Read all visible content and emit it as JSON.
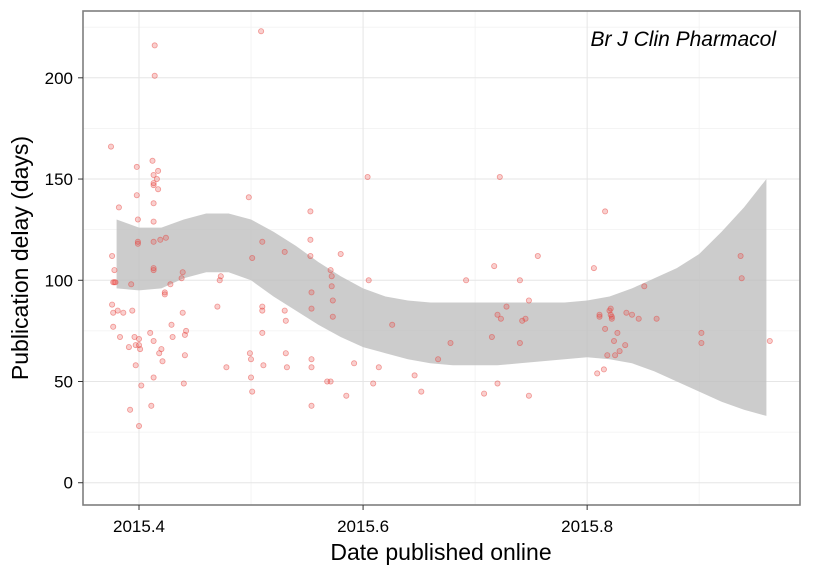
{
  "chart_data": {
    "type": "scatter",
    "annotation": "Br J Clin Pharmacol",
    "xlabel": "Date published online",
    "ylabel": "Publication delay (days)",
    "xlim": [
      2015.35,
      2015.99
    ],
    "ylim": [
      -11,
      233
    ],
    "x_ticks": [
      "2015.4",
      "2015.6",
      "2015.8"
    ],
    "x_tick_values": [
      2015.4,
      2015.6,
      2015.8
    ],
    "y_ticks": [
      "0",
      "50",
      "100",
      "150",
      "200"
    ],
    "y_tick_values": [
      0,
      50,
      100,
      150,
      200
    ],
    "grid": true,
    "point_color": "#e8413c",
    "band_color": "#bebebe",
    "points": [
      [
        2015.375,
        166
      ],
      [
        2015.376,
        112
      ],
      [
        2015.376,
        88
      ],
      [
        2015.377,
        84
      ],
      [
        2015.377,
        77
      ],
      [
        2015.377,
        99
      ],
      [
        2015.378,
        99
      ],
      [
        2015.378,
        105
      ],
      [
        2015.379,
        99
      ],
      [
        2015.381,
        85
      ],
      [
        2015.382,
        136
      ],
      [
        2015.383,
        72
      ],
      [
        2015.386,
        84
      ],
      [
        2015.391,
        67
      ],
      [
        2015.392,
        36
      ],
      [
        2015.393,
        98
      ],
      [
        2015.394,
        85
      ],
      [
        2015.396,
        72
      ],
      [
        2015.397,
        68
      ],
      [
        2015.397,
        58
      ],
      [
        2015.398,
        156
      ],
      [
        2015.398,
        142
      ],
      [
        2015.399,
        130
      ],
      [
        2015.399,
        119
      ],
      [
        2015.399,
        118
      ],
      [
        2015.4,
        71
      ],
      [
        2015.4,
        68
      ],
      [
        2015.4,
        28
      ],
      [
        2015.401,
        66
      ],
      [
        2015.402,
        48
      ],
      [
        2015.41,
        74
      ],
      [
        2015.411,
        38
      ],
      [
        2015.412,
        159
      ],
      [
        2015.413,
        152
      ],
      [
        2015.413,
        148
      ],
      [
        2015.413,
        147
      ],
      [
        2015.413,
        138
      ],
      [
        2015.413,
        129
      ],
      [
        2015.413,
        119
      ],
      [
        2015.413,
        106
      ],
      [
        2015.413,
        105
      ],
      [
        2015.413,
        70
      ],
      [
        2015.413,
        52
      ],
      [
        2015.414,
        216
      ],
      [
        2015.414,
        201
      ],
      [
        2015.416,
        150
      ],
      [
        2015.417,
        154
      ],
      [
        2015.417,
        145
      ],
      [
        2015.418,
        64
      ],
      [
        2015.419,
        120
      ],
      [
        2015.42,
        66
      ],
      [
        2015.421,
        60
      ],
      [
        2015.423,
        94
      ],
      [
        2015.423,
        93
      ],
      [
        2015.424,
        121
      ],
      [
        2015.428,
        98
      ],
      [
        2015.429,
        78
      ],
      [
        2015.43,
        72
      ],
      [
        2015.438,
        101
      ],
      [
        2015.439,
        104
      ],
      [
        2015.439,
        84
      ],
      [
        2015.44,
        49
      ],
      [
        2015.441,
        73
      ],
      [
        2015.441,
        63
      ],
      [
        2015.442,
        75
      ],
      [
        2015.47,
        87
      ],
      [
        2015.472,
        100
      ],
      [
        2015.473,
        102
      ],
      [
        2015.478,
        57
      ],
      [
        2015.498,
        141
      ],
      [
        2015.499,
        64
      ],
      [
        2015.5,
        61
      ],
      [
        2015.5,
        52
      ],
      [
        2015.501,
        45
      ],
      [
        2015.501,
        111
      ],
      [
        2015.509,
        223
      ],
      [
        2015.51,
        119
      ],
      [
        2015.51,
        87
      ],
      [
        2015.51,
        85
      ],
      [
        2015.51,
        74
      ],
      [
        2015.511,
        58
      ],
      [
        2015.53,
        114
      ],
      [
        2015.53,
        85
      ],
      [
        2015.531,
        80
      ],
      [
        2015.531,
        64
      ],
      [
        2015.532,
        57
      ],
      [
        2015.553,
        134
      ],
      [
        2015.553,
        120
      ],
      [
        2015.553,
        112
      ],
      [
        2015.554,
        94
      ],
      [
        2015.554,
        86
      ],
      [
        2015.554,
        61
      ],
      [
        2015.554,
        57
      ],
      [
        2015.554,
        38
      ],
      [
        2015.568,
        50
      ],
      [
        2015.571,
        50
      ],
      [
        2015.571,
        105
      ],
      [
        2015.572,
        102
      ],
      [
        2015.572,
        97
      ],
      [
        2015.573,
        90
      ],
      [
        2015.573,
        82
      ],
      [
        2015.58,
        113
      ],
      [
        2015.585,
        43
      ],
      [
        2015.592,
        59
      ],
      [
        2015.604,
        151
      ],
      [
        2015.605,
        100
      ],
      [
        2015.609,
        49
      ],
      [
        2015.614,
        57
      ],
      [
        2015.626,
        78
      ],
      [
        2015.646,
        53
      ],
      [
        2015.652,
        45
      ],
      [
        2015.667,
        61
      ],
      [
        2015.678,
        69
      ],
      [
        2015.692,
        100
      ],
      [
        2015.708,
        44
      ],
      [
        2015.715,
        72
      ],
      [
        2015.717,
        107
      ],
      [
        2015.72,
        49
      ],
      [
        2015.72,
        83
      ],
      [
        2015.722,
        151
      ],
      [
        2015.723,
        81
      ],
      [
        2015.728,
        87
      ],
      [
        2015.74,
        69
      ],
      [
        2015.74,
        100
      ],
      [
        2015.742,
        80
      ],
      [
        2015.745,
        81
      ],
      [
        2015.748,
        43
      ],
      [
        2015.748,
        90
      ],
      [
        2015.756,
        112
      ],
      [
        2015.806,
        106
      ],
      [
        2015.809,
        54
      ],
      [
        2015.811,
        83
      ],
      [
        2015.811,
        82
      ],
      [
        2015.815,
        56
      ],
      [
        2015.816,
        134
      ],
      [
        2015.816,
        76
      ],
      [
        2015.818,
        63
      ],
      [
        2015.82,
        85
      ],
      [
        2015.821,
        86
      ],
      [
        2015.821,
        83
      ],
      [
        2015.822,
        82
      ],
      [
        2015.822,
        81
      ],
      [
        2015.824,
        70
      ],
      [
        2015.825,
        63
      ],
      [
        2015.827,
        74
      ],
      [
        2015.829,
        65
      ],
      [
        2015.834,
        68
      ],
      [
        2015.835,
        84
      ],
      [
        2015.84,
        83
      ],
      [
        2015.846,
        81
      ],
      [
        2015.851,
        97
      ],
      [
        2015.862,
        81
      ],
      [
        2015.902,
        74
      ],
      [
        2015.902,
        69
      ],
      [
        2015.937,
        112
      ],
      [
        2015.938,
        101
      ],
      [
        2015.963,
        70
      ]
    ],
    "confidence_band": {
      "x": [
        2015.38,
        2015.4,
        2015.42,
        2015.44,
        2015.46,
        2015.48,
        2015.5,
        2015.52,
        2015.54,
        2015.56,
        2015.58,
        2015.6,
        2015.62,
        2015.64,
        2015.66,
        2015.68,
        2015.7,
        2015.72,
        2015.74,
        2015.76,
        2015.78,
        2015.8,
        2015.82,
        2015.84,
        2015.86,
        2015.88,
        2015.9,
        2015.92,
        2015.94,
        2015.96
      ],
      "upper": [
        130,
        126,
        126,
        130,
        133,
        133,
        130,
        124,
        117,
        109,
        102,
        96,
        92,
        90,
        89,
        89,
        89,
        89,
        89,
        89,
        89,
        90,
        92,
        96,
        101,
        106,
        113,
        124,
        136,
        150
      ],
      "lower": [
        96,
        95,
        96,
        101,
        104,
        104,
        100,
        92,
        85,
        78,
        72,
        67,
        64,
        61,
        59,
        58,
        58,
        58,
        59,
        60,
        61,
        62,
        61,
        59,
        55,
        50,
        45,
        40,
        36,
        33
      ]
    }
  }
}
